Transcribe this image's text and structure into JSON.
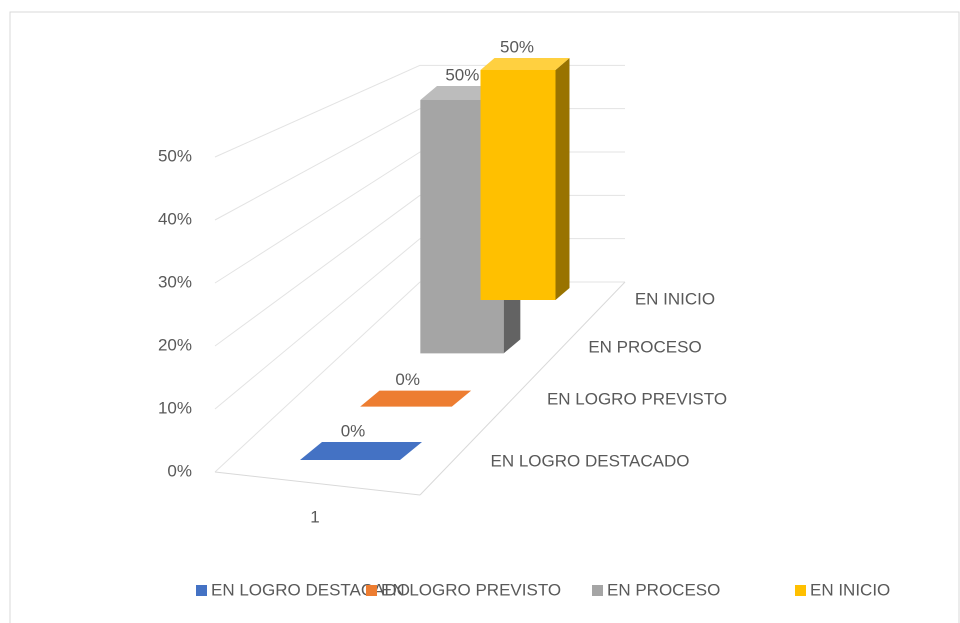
{
  "chart_data": {
    "type": "bar3d",
    "categories": [
      "1"
    ],
    "series": [
      {
        "name": "EN LOGRO DESTACADO",
        "color": "#4472c4",
        "values": [
          0
        ],
        "value_labels": [
          "0%"
        ]
      },
      {
        "name": "EN LOGRO PREVISTO",
        "color": "#ed7d31",
        "values": [
          0
        ],
        "value_labels": [
          "0%"
        ]
      },
      {
        "name": "EN PROCESO",
        "color": "#a5a5a5",
        "values": [
          50
        ],
        "value_labels": [
          "50%"
        ]
      },
      {
        "name": "EN INICIO",
        "color": "#ffc000",
        "values": [
          50
        ],
        "value_labels": [
          "50%"
        ]
      }
    ],
    "ylim": [
      0,
      60
    ],
    "yticks": [
      {
        "value": 0,
        "label": "0%"
      },
      {
        "value": 10,
        "label": "10%"
      },
      {
        "value": 20,
        "label": "20%"
      },
      {
        "value": 30,
        "label": "30%"
      },
      {
        "value": 40,
        "label": "40%"
      },
      {
        "value": 50,
        "label": "50%"
      }
    ],
    "grid": true,
    "legend": "bottom"
  }
}
